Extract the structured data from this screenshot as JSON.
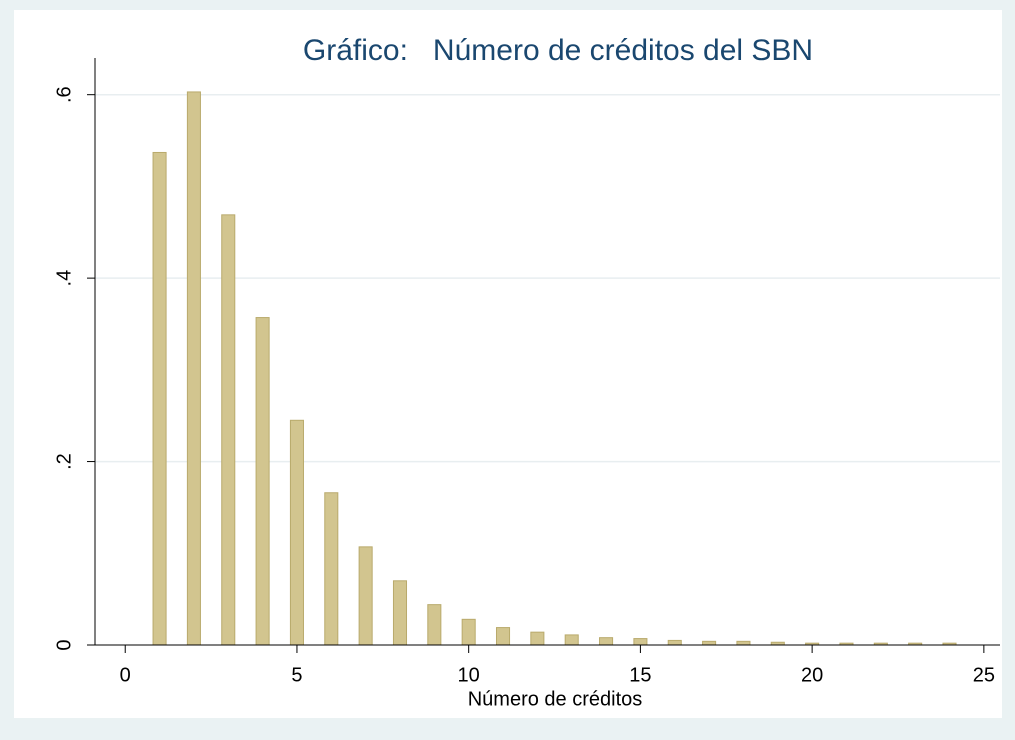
{
  "chart_data": {
    "type": "bar",
    "title": "Gráfico:   Número de créditos del SBN",
    "x_label": "Número de créditos",
    "x": [
      1,
      2,
      3,
      4,
      5,
      6,
      7,
      8,
      9,
      10,
      11,
      12,
      13,
      14,
      15,
      16,
      17,
      18,
      19,
      20,
      21,
      22,
      23,
      24
    ],
    "values": [
      0.537,
      0.603,
      0.469,
      0.357,
      0.245,
      0.166,
      0.107,
      0.07,
      0.044,
      0.028,
      0.019,
      0.014,
      0.011,
      0.008,
      0.007,
      0.005,
      0.004,
      0.004,
      0.003,
      0.002,
      0.002,
      0.002,
      0.002,
      0.002
    ],
    "color": "#d2c58f",
    "edge_color": "#b9aa6c",
    "xlim": [
      -0.88,
      25.47
    ],
    "xticks": [
      0,
      5,
      10,
      15,
      20,
      25
    ],
    "ylim": [
      0,
      0.64
    ],
    "yticks": [
      {
        "value": 0,
        "label": "0"
      },
      {
        "value": 0.2,
        "label": ".2"
      },
      {
        "value": 0.4,
        "label": ".4"
      },
      {
        "value": 0.6,
        "label": ".6"
      }
    ],
    "grid": true
  }
}
